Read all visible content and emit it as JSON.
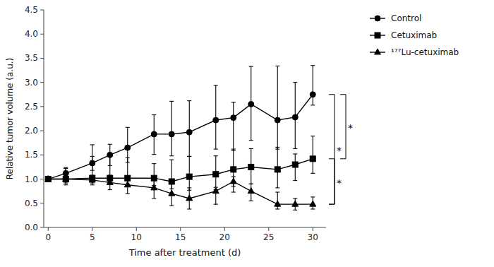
{
  "chart_data": {
    "type": "line",
    "x_label": "Time after treatment  (d)",
    "y_label": "Relative tumor volume (a.u.)",
    "x": [
      0,
      2,
      5,
      7,
      9,
      12,
      14,
      16,
      19,
      21,
      23,
      26,
      28,
      30
    ],
    "series": [
      {
        "name": "Control",
        "color": "#000000",
        "marker": "circle",
        "values": [
          1.0,
          1.12,
          1.33,
          1.5,
          1.65,
          1.93,
          1.93,
          1.97,
          2.22,
          2.27,
          2.55,
          2.22,
          2.28,
          2.75
        ],
        "error_low": [
          0.0,
          0.1,
          0.15,
          0.22,
          0.3,
          0.42,
          0.45,
          0.5,
          0.6,
          0.68,
          0.75,
          0.6,
          0.65,
          0.22
        ],
        "error_high": [
          0.0,
          0.12,
          0.38,
          0.22,
          0.42,
          0.4,
          0.68,
          0.65,
          0.72,
          0.32,
          0.78,
          1.12,
          0.72,
          0.6
        ]
      },
      {
        "name": "Cetuximab",
        "color": "#000000",
        "marker": "square",
        "values": [
          1.0,
          1.0,
          1.02,
          1.02,
          1.02,
          1.02,
          0.95,
          1.05,
          1.1,
          1.2,
          1.25,
          1.2,
          1.3,
          1.42
        ],
        "error_low": [
          0.0,
          0.12,
          0.1,
          0.12,
          0.12,
          0.15,
          0.15,
          0.28,
          0.32,
          0.35,
          0.35,
          0.38,
          0.33,
          0.3
        ],
        "error_high": [
          0.0,
          0.22,
          0.45,
          0.5,
          0.42,
          0.3,
          0.45,
          0.42,
          0.38,
          0.42,
          0.38,
          0.46,
          0.22,
          0.47
        ]
      },
      {
        "name": "¹⁷⁷Lu-cetuximab",
        "color": "#000000",
        "marker": "triangle",
        "values": [
          1.0,
          1.0,
          0.98,
          0.93,
          0.88,
          0.82,
          0.7,
          0.6,
          0.75,
          0.95,
          0.75,
          0.48,
          0.48,
          0.48
        ],
        "error_low": [
          0.0,
          0.08,
          0.1,
          0.15,
          0.18,
          0.22,
          0.25,
          0.22,
          0.27,
          0.22,
          0.2,
          0.1,
          0.12,
          0.1
        ],
        "error_high": [
          0.0,
          0.08,
          0.1,
          0.15,
          0.18,
          0.22,
          0.25,
          0.22,
          0.08,
          0.1,
          0.15,
          0.25,
          0.12,
          0.15
        ]
      }
    ],
    "xlim": [
      -0.5,
      31.5
    ],
    "xticks": [
      0,
      5,
      10,
      15,
      20,
      25,
      30
    ],
    "ylim": [
      0.0,
      4.5
    ],
    "yticks": [
      {
        "value": 0,
        "label": "0.0"
      },
      0.5,
      {
        "value": 1,
        "label": "1.0"
      },
      1.5,
      {
        "value": 2,
        "label": "2.0"
      },
      2.5,
      {
        "value": 3,
        "label": "3.0"
      },
      3.5,
      {
        "value": 4,
        "label": "4.0"
      },
      4.5
    ],
    "annotations": [
      {
        "text": "*",
        "y_from": 2.75,
        "y_to": 0.48
      },
      {
        "text": "*",
        "y_from": 2.75,
        "y_to": 1.42
      },
      {
        "text": "*",
        "y_from": 1.42,
        "y_to": 0.48
      }
    ],
    "grid": false,
    "legend": "right"
  }
}
